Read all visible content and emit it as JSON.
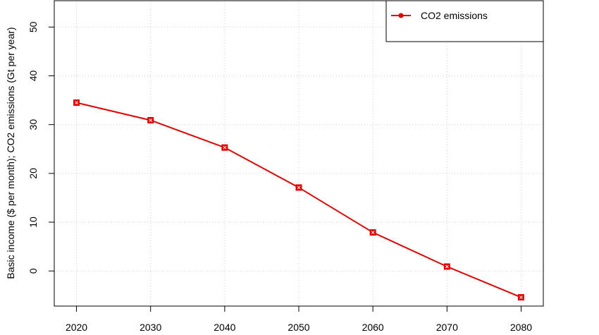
{
  "chart_data": {
    "type": "line",
    "title": "",
    "xlabel": "",
    "ylabel": "Basic income ($ per month); CO2 emissions (Gt per year)",
    "x": [
      2020,
      2030,
      2040,
      2050,
      2060,
      2070,
      2080
    ],
    "xticks": [
      2020,
      2030,
      2040,
      2050,
      2060,
      2070,
      2080
    ],
    "yticks": [
      0,
      10,
      20,
      30,
      40,
      50
    ],
    "xlim": [
      2017,
      2083
    ],
    "ylim": [
      -7.2,
      55.4
    ],
    "grid": true,
    "legend_position": "top-right",
    "series": [
      {
        "name": "CO2 emissions",
        "color": "#e00000",
        "marker": "square",
        "values": [
          34.5,
          30.9,
          25.3,
          17.1,
          7.9,
          0.9,
          -5.4
        ]
      }
    ]
  }
}
